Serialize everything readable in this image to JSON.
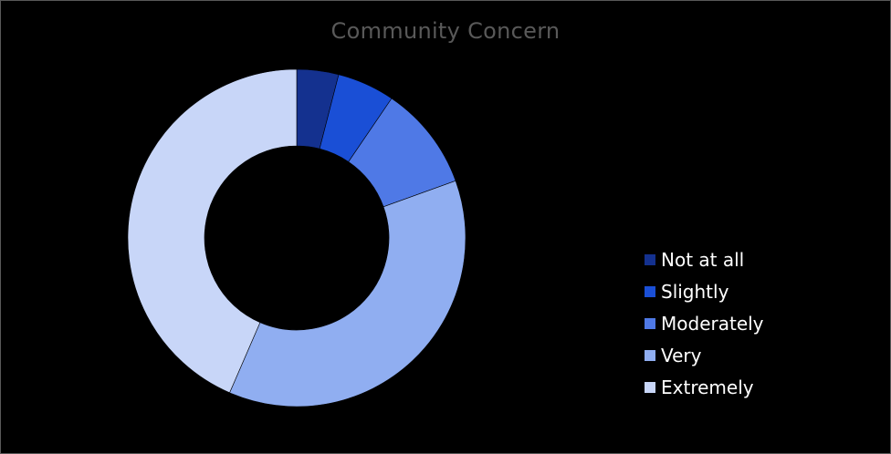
{
  "chart_data": {
    "type": "pie",
    "variant": "donut",
    "title": "Community Concern",
    "categories": [
      "Not at all",
      "Slightly",
      "Moderately",
      "Very",
      "Extremely"
    ],
    "values": [
      4,
      5.5,
      10,
      37,
      43.5
    ],
    "unit": "percent",
    "colors": [
      "#14318f",
      "#1a4fd6",
      "#4f79e6",
      "#90aef1",
      "#c8d6f8"
    ],
    "legend_position": "right"
  }
}
